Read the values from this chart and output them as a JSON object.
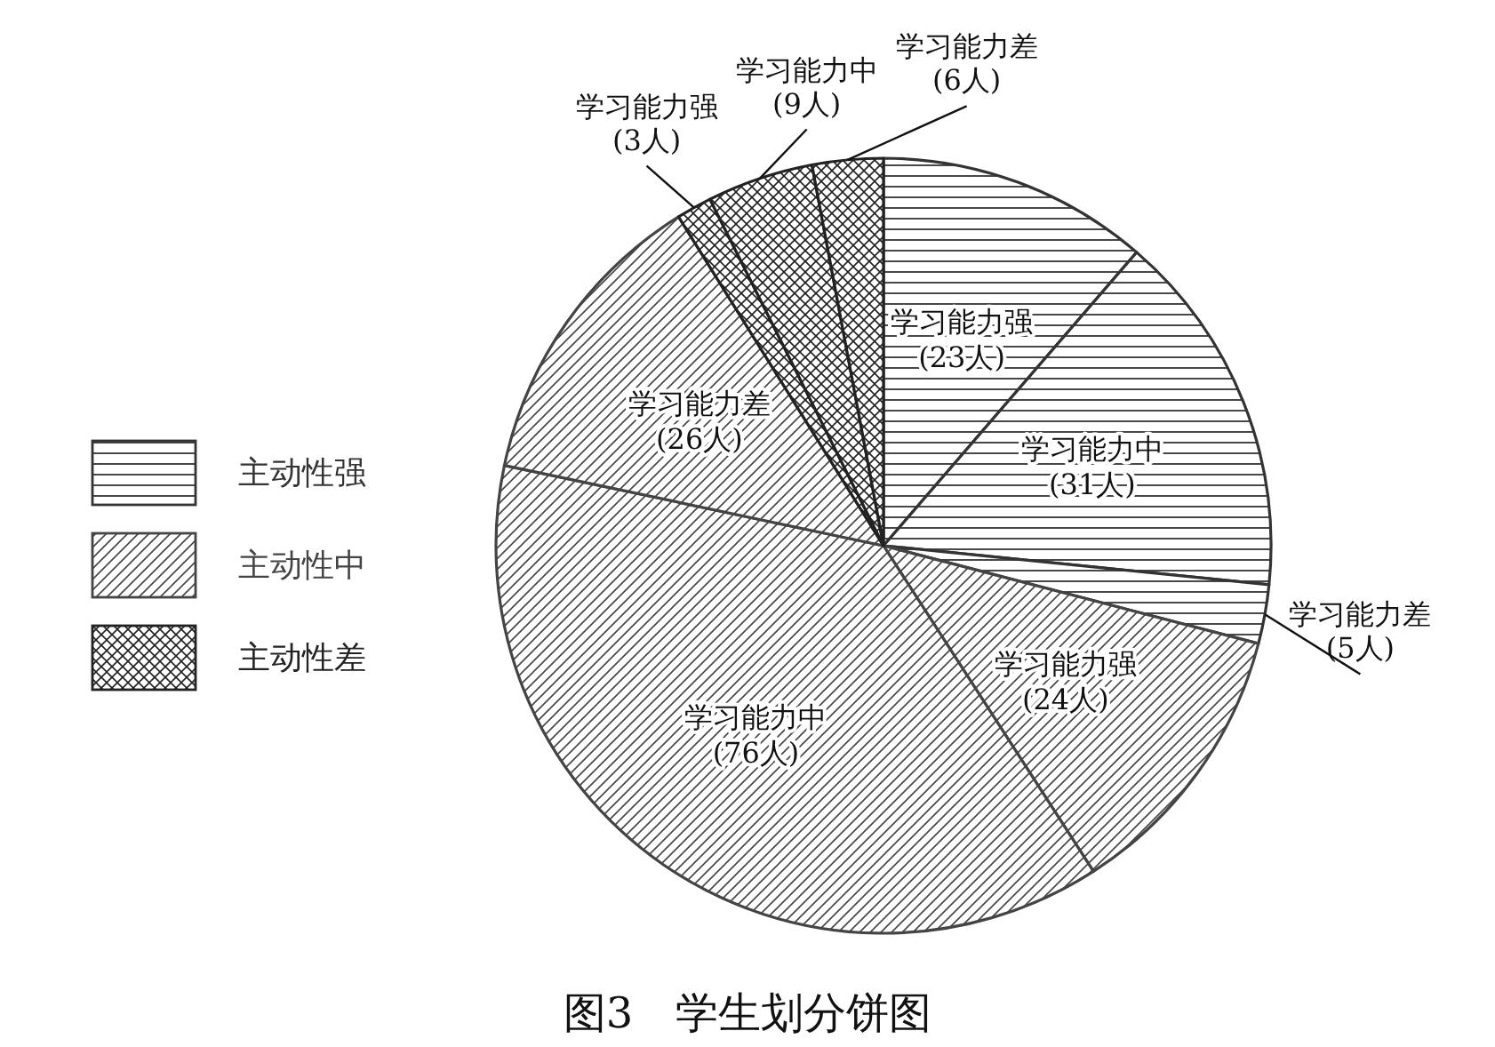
{
  "chart_data": {
    "type": "pie",
    "title": "图3　学生划分饼图",
    "categories": [
      "学习能力强",
      "学习能力中",
      "学习能力差",
      "学习能力强",
      "学习能力中",
      "学习能力差",
      "学习能力强",
      "学习能力中",
      "学习能力差"
    ],
    "value_labels": [
      "(23人)",
      "(31人)",
      "(5人)",
      "(24人)",
      "(76人)",
      "(26人)",
      "(3人)",
      "(9人)",
      "(6人)"
    ],
    "values": [
      23,
      31,
      5,
      24,
      76,
      26,
      3,
      9,
      6
    ],
    "colors": [
      "#333333",
      "#333333",
      "#333333",
      "#444444",
      "#444444",
      "#444444",
      "#222222",
      "#222222",
      "#222222"
    ],
    "annotations": [
      "主动性强",
      "主动性中",
      "主动性差"
    ]
  }
}
